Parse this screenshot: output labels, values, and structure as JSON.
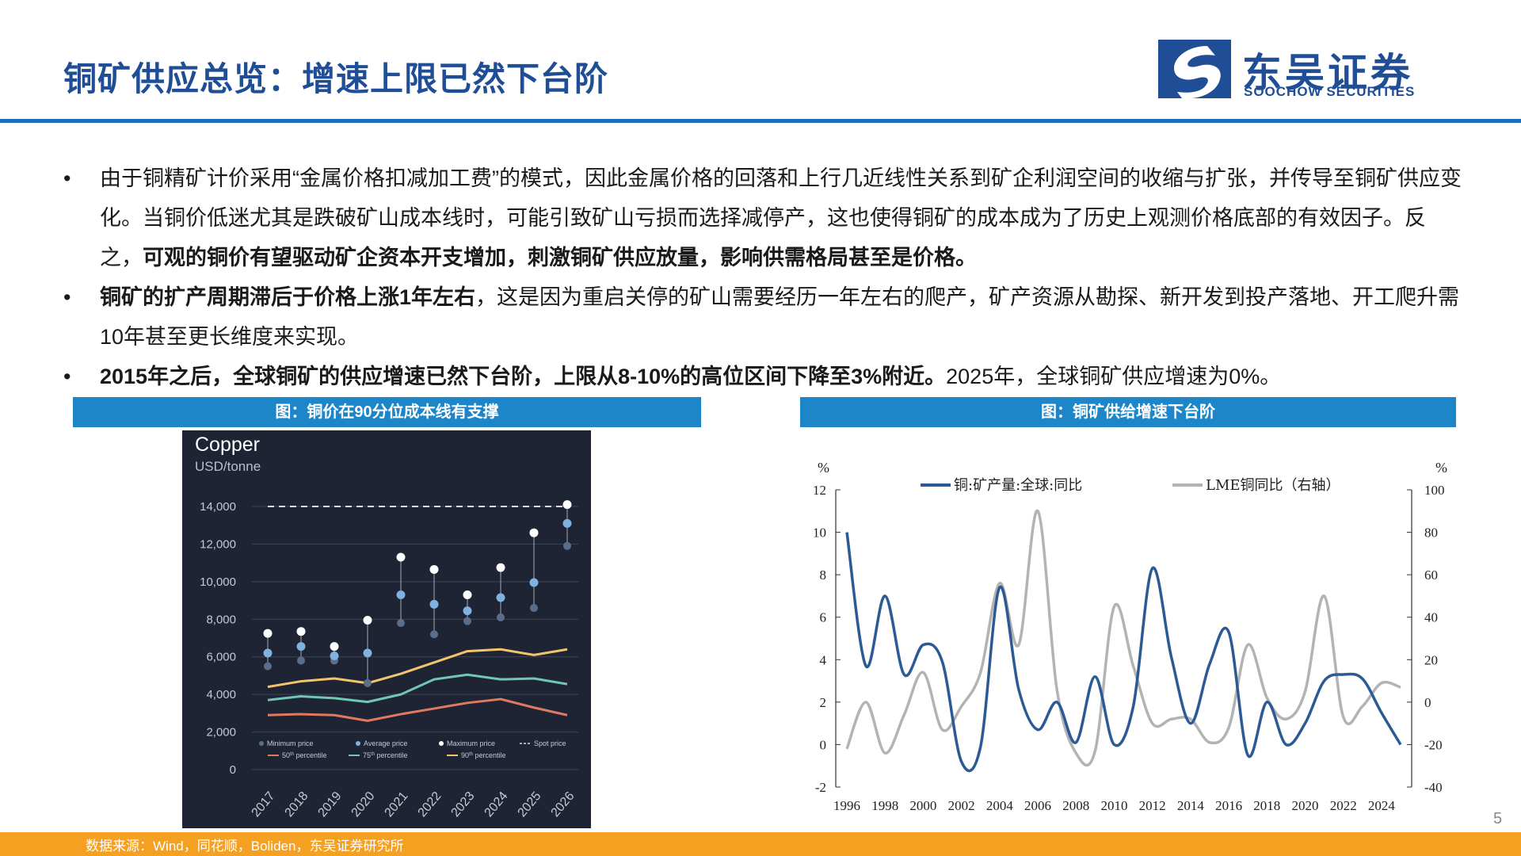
{
  "header": {
    "title": "铜矿供应总览：增速上限已然下台阶",
    "logo_cn": "东吴证券",
    "logo_en": "SOOCHOW SECURITIES"
  },
  "bullets": [
    {
      "dot": "•",
      "text": "由于铜精矿计价采用“金属价格扣减加工费”的模式，因此金属价格的回落和上行几近线性关系到矿企利润空间的收缩与扩张，并传导至铜矿供应变化。当铜价低迷尤其是跌破矿山成本线时，可能引致矿山亏损而选择减停产，这也使得铜矿的成本成为了历史上观测价格底部的有效因子。反之，",
      "bold": "可观的铜价有望驱动矿企资本开支增加，刺激铜矿供应放量，影响供需格局甚至是价格。",
      "after": ""
    },
    {
      "dot": "•",
      "text": "",
      "bold": "铜矿的扩产周期滞后于价格上涨1年左右",
      "after": "，这是因为重启关停的矿山需要经历一年左右的爬产，矿产资源从勘探、新开发到投产落地、开工爬升需10年甚至更长维度来实现。"
    },
    {
      "dot": "•",
      "text": "",
      "bold": "2015年之后，全球铜矿的供应增速已然下台阶，上限从8-10%的高位区间下降至3%附近。",
      "after": "2025年，全球铜矿供应增速为0%。"
    }
  ],
  "figures": {
    "left_title": "图：铜价在90分位成本线有支撑",
    "right_title": "图：铜矿供给增速下台阶"
  },
  "footer": {
    "source": "数据来源：Wind，同花顺，Boliden，东吴证券研究所",
    "page": "5"
  },
  "colors": {
    "brand_blue": "#1f4e96",
    "fig_header": "#1c86c9",
    "footer": "#f5a020",
    "c1_bg": "#1e2433",
    "p50": "#e07a5f",
    "p75": "#6fc7b4",
    "p90": "#f2c46b",
    "avg": "#7fb2e0",
    "prod": "#2b5a94",
    "lme": "#b3b3b3"
  },
  "chart_data": [
    {
      "type": "scatter",
      "title": "Copper",
      "subtitle": "USD/tonne",
      "categories": [
        "2017",
        "2018",
        "2019",
        "2020",
        "2021",
        "2022",
        "2023",
        "2024",
        "2025",
        "2026"
      ],
      "ylim": [
        0,
        14000
      ],
      "yticks": [
        0,
        2000,
        4000,
        6000,
        8000,
        10000,
        12000,
        14000
      ],
      "ytick_labels": [
        "0",
        "2,000",
        "4,000",
        "6,000",
        "8,000",
        "10,000",
        "12,000",
        "14,000"
      ],
      "grid": true,
      "legend_position": "bottom",
      "series": [
        {
          "name": "Minimum price",
          "values": [
            5500,
            5800,
            5800,
            4600,
            7800,
            7200,
            7900,
            8100,
            8600,
            11900
          ]
        },
        {
          "name": "Average price",
          "values": [
            6200,
            6550,
            6050,
            6200,
            9300,
            8800,
            8450,
            9150,
            9950,
            13100
          ]
        },
        {
          "name": "Maximum price",
          "values": [
            7250,
            7350,
            6550,
            7950,
            11300,
            10650,
            9300,
            10750,
            12600,
            14100
          ]
        },
        {
          "name": "Spot price",
          "values": [
            14000,
            14000,
            14000,
            14000,
            14000,
            14000,
            14000,
            14000,
            14000,
            14000
          ]
        },
        {
          "name": "50th percentile",
          "values": [
            2900,
            2950,
            2900,
            2600,
            2950,
            3250,
            3550,
            3750,
            3300,
            2900
          ]
        },
        {
          "name": "75th percentile",
          "values": [
            3700,
            3900,
            3800,
            3600,
            4000,
            4800,
            5050,
            4800,
            4850,
            4550
          ]
        },
        {
          "name": "90th percentile",
          "values": [
            4400,
            4700,
            4850,
            4600,
            5100,
            5700,
            6300,
            6400,
            6100,
            6400
          ]
        }
      ],
      "legend_labels": {
        "min": "Minimum price",
        "avg": "Average price",
        "max": "Maximum price",
        "spot": "Spot price",
        "p50_pre": "50",
        "p75_pre": "75",
        "p90_pre": "90",
        "sup": "th",
        "pct": " percentile"
      }
    },
    {
      "type": "line",
      "ylabel_left": "%",
      "ylabel_right": "%",
      "xlim": [
        1996,
        2025
      ],
      "xticks": [
        "1996",
        "1998",
        "2000",
        "2002",
        "2004",
        "2006",
        "2008",
        "2010",
        "2012",
        "2014",
        "2016",
        "2018",
        "2020",
        "2022",
        "2024"
      ],
      "ylim_left": [
        -2,
        12
      ],
      "yticks_left": [
        "-2",
        "0",
        "2",
        "4",
        "6",
        "8",
        "10",
        "12"
      ],
      "ylim_right": [
        -40,
        100
      ],
      "yticks_right": [
        "-40",
        "-20",
        "0",
        "20",
        "40",
        "60",
        "80",
        "100"
      ],
      "legend_position": "top",
      "series": [
        {
          "name": "铜:矿产量:全球:同比",
          "axis": "left",
          "x": [
            1996,
            1997,
            1998,
            1999,
            2000,
            2001,
            2002,
            2003,
            2004,
            2005,
            2006,
            2007,
            2008,
            2009,
            2010,
            2011,
            2012,
            2013,
            2014,
            2015,
            2016,
            2017,
            2018,
            2019,
            2020,
            2021,
            2022,
            2023,
            2024,
            2025
          ],
          "y": [
            10.0,
            3.7,
            7.0,
            3.3,
            4.7,
            3.9,
            -0.8,
            -0.1,
            7.4,
            2.6,
            0.7,
            2.0,
            0.1,
            3.2,
            0.0,
            1.8,
            8.3,
            4.1,
            1.0,
            3.8,
            5.3,
            -0.5,
            2.0,
            0.0,
            1.0,
            3.0,
            3.3,
            3.1,
            1.5,
            0.0
          ]
        },
        {
          "name": "LME铜同比（右轴）",
          "axis": "right",
          "x": [
            1996,
            1997,
            1998,
            1999,
            2000,
            2001,
            2002,
            2003,
            2004,
            2005,
            2006,
            2007,
            2008,
            2009,
            2010,
            2011,
            2012,
            2013,
            2014,
            2015,
            2016,
            2017,
            2018,
            2019,
            2020,
            2021,
            2022,
            2023,
            2024,
            2025
          ],
          "y": [
            -22,
            0,
            -24,
            -6,
            14,
            -13,
            -2,
            14,
            56,
            27,
            90,
            6,
            -24,
            -23,
            45,
            17,
            -10,
            -8,
            -8,
            -19,
            -12,
            27,
            2,
            -8,
            5,
            50,
            -7,
            -2,
            9,
            7
          ]
        }
      ]
    }
  ]
}
